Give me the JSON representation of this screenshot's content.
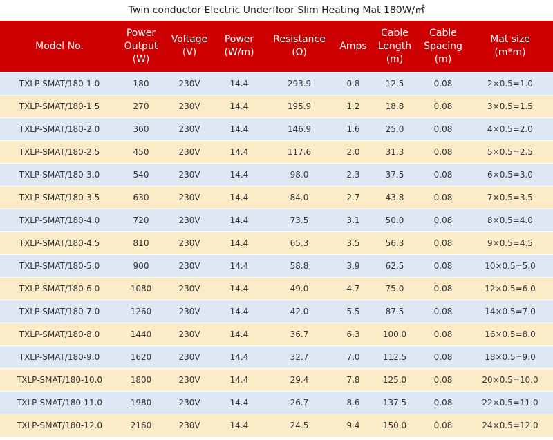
{
  "title": "Twin conductor Electric Underfloor Slim Heating Mat 180W/㎡",
  "headers": [
    [
      "Model No."
    ],
    [
      "Power",
      "Output",
      "(W)"
    ],
    [
      "Voltage",
      "(V)"
    ],
    [
      "Power",
      "(W/m)"
    ],
    [
      "Resistance",
      "(Ω)"
    ],
    [
      "Amps"
    ],
    [
      "Cable",
      "Length",
      "(m)"
    ],
    [
      "Cable",
      "Spacing",
      "(m)"
    ],
    [
      "Mat size",
      "(m*m)"
    ]
  ],
  "rows": [
    [
      "TXLP-SMAT/180-1.0",
      "180",
      "230V",
      "14.4",
      "293.9",
      "0.8",
      "12.5",
      "0.08",
      "2×0.5=1.0"
    ],
    [
      "TXLP-SMAT/180-1.5",
      "270",
      "230V",
      "14.4",
      "195.9",
      "1.2",
      "18.8",
      "0.08",
      "3×0.5=1.5"
    ],
    [
      "TXLP-SMAT/180-2.0",
      "360",
      "230V",
      "14.4",
      "146.9",
      "1.6",
      "25.0",
      "0.08",
      "4×0.5=2.0"
    ],
    [
      "TXLP-SMAT/180-2.5",
      "450",
      "230V",
      "14.4",
      "117.6",
      "2.0",
      "31.3",
      "0.08",
      "5×0.5=2.5"
    ],
    [
      "TXLP-SMAT/180-3.0",
      "540",
      "230V",
      "14.4",
      "98.0",
      "2.3",
      "37.5",
      "0.08",
      "6×0.5=3.0"
    ],
    [
      "TXLP-SMAT/180-3.5",
      "630",
      "230V",
      "14.4",
      "84.0",
      "2.7",
      "43.8",
      "0.08",
      "7×0.5=3.5"
    ],
    [
      "TXLP-SMAT/180-4.0",
      "720",
      "230V",
      "14.4",
      "73.5",
      "3.1",
      "50.0",
      "0.08",
      "8×0.5=4.0"
    ],
    [
      "TXLP-SMAT/180-4.5",
      "810",
      "230V",
      "14.4",
      "65.3",
      "3.5",
      "56.3",
      "0.08",
      "9×0.5=4.5"
    ],
    [
      "TXLP-SMAT/180-5.0",
      "900",
      "230V",
      "14.4",
      "58.8",
      "3.9",
      "62.5",
      "0.08",
      "10×0.5=5.0"
    ],
    [
      "TXLP-SMAT/180-6.0",
      "1080",
      "230V",
      "14.4",
      "49.0",
      "4.7",
      "75.0",
      "0.08",
      "12×0.5=6.0"
    ],
    [
      "TXLP-SMAT/180-7.0",
      "1260",
      "230V",
      "14.4",
      "42.0",
      "5.5",
      "87.5",
      "0.08",
      "14×0.5=7.0"
    ],
    [
      "TXLP-SMAT/180-8.0",
      "1440",
      "230V",
      "14.4",
      "36.7",
      "6.3",
      "100.0",
      "0.08",
      "16×0.5=8.0"
    ],
    [
      "TXLP-SMAT/180-9.0",
      "1620",
      "230V",
      "14.4",
      "32.7",
      "7.0",
      "112.5",
      "0.08",
      "18×0.5=9.0"
    ],
    [
      "TXLP-SMAT/180-10.0",
      "1800",
      "230V",
      "14.4",
      "29.4",
      "7.8",
      "125.0",
      "0.08",
      "20×0.5=10.0"
    ],
    [
      "TXLP-SMAT/180-11.0",
      "1980",
      "230V",
      "14.4",
      "26.7",
      "8.6",
      "137.5",
      "0.08",
      "22×0.5=11.0"
    ],
    [
      "TXLP-SMAT/180-12.0",
      "2160",
      "230V",
      "14.4",
      "24.5",
      "9.4",
      "150.0",
      "0.08",
      "24×0.5=12.0"
    ]
  ],
  "colors": {
    "header_bg": "#cc0000",
    "row_odd": "#dde8f4",
    "row_even": "#fcebc7"
  }
}
